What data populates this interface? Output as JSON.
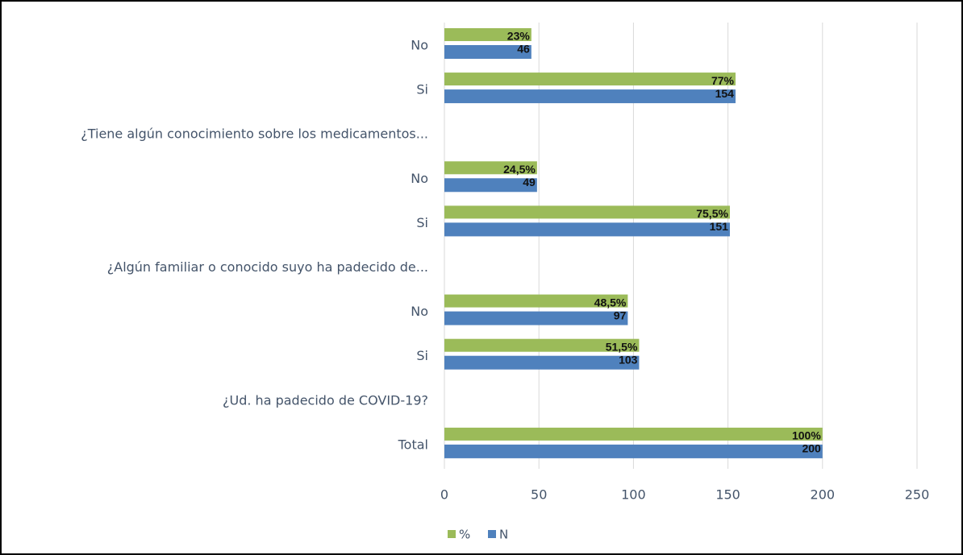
{
  "chart_data": {
    "type": "bar",
    "orientation": "horizontal",
    "categories": [
      "No",
      "Si",
      "¿Tiene algún conocimiento sobre los medicamentos...",
      "No",
      "Si",
      "¿Algún familiar o conocido suyo ha padecido de...",
      "No",
      "Si",
      "¿Ud. ha padecido de COVID-19?",
      "Total"
    ],
    "series": [
      {
        "name": "%",
        "color": "#9bbb59",
        "values": [
          46,
          154,
          null,
          49,
          151,
          null,
          97,
          103,
          null,
          200
        ],
        "value_labels": [
          "23%",
          "77%",
          null,
          "24,5%",
          "75,5%",
          null,
          "48,5%",
          "51,5%",
          null,
          "100%"
        ]
      },
      {
        "name": "N",
        "color": "#4f81bd",
        "values": [
          46,
          154,
          null,
          49,
          151,
          null,
          97,
          103,
          null,
          200
        ]
      }
    ],
    "xlim": [
      0,
      250
    ],
    "xticks": [
      0,
      50,
      100,
      150,
      200,
      250
    ],
    "grid": true,
    "legend": "bottom"
  }
}
